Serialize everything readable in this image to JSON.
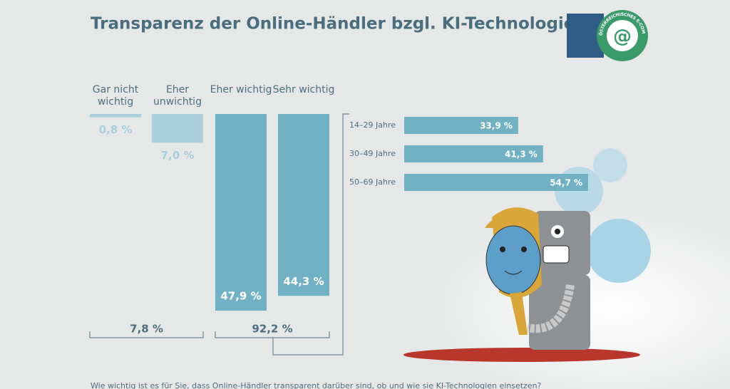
{
  "chart_data": [
    {
      "type": "bar",
      "orientation": "vertical",
      "title": "Transparenz der Online-Händler bzgl. KI-Technologien",
      "categories": [
        "Gar nicht wichtig",
        "Eher unwichtig",
        "Eher wichtig",
        "Sehr wichtig"
      ],
      "values": [
        0.8,
        7.0,
        47.9,
        44.3
      ],
      "value_labels": [
        "0,8 %",
        "7,0 %",
        "47,9 %",
        "44,3 %"
      ],
      "colors": [
        "#a9cfdc",
        "#a9cfdc",
        "#72b0c4",
        "#72b0c4"
      ],
      "groups": [
        {
          "value": 7.8,
          "label": "7,8 %"
        },
        {
          "value": 92.2,
          "label": "92,2 %"
        }
      ],
      "note": "Wie wichtig ist es für Sie, dass Online-Händler transparent darüber sind, ob und wie sie KI-Technologien einsetzen?",
      "logo": "ÖSTERREICHISCHES E-COMMERCE-GÜTEZEICHEN"
    },
    {
      "type": "bar",
      "orientation": "horizontal",
      "categories": [
        "14–29 Jahre",
        "30–49 Jahre",
        "50–69 Jahre"
      ],
      "values": [
        33.9,
        41.3,
        54.7
      ],
      "value_labels": [
        "33,9 %",
        "41,3 %",
        "54,7 %"
      ],
      "color": "#72b0c4"
    }
  ]
}
